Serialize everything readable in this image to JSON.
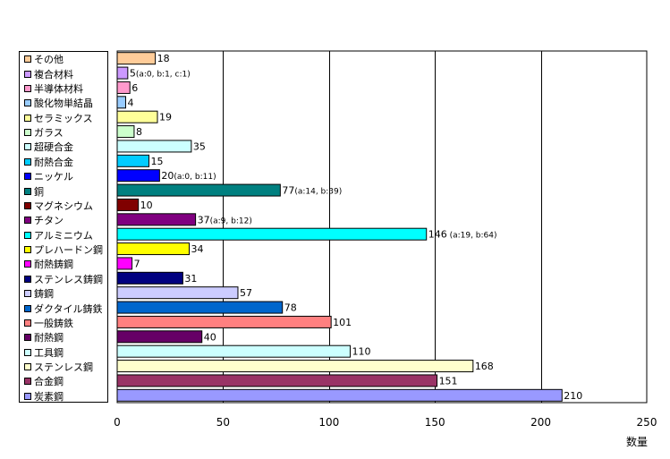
{
  "chart_data": {
    "type": "bar",
    "orientation": "horizontal",
    "xlabel": "数量",
    "xlim": [
      0,
      250
    ],
    "xticks": [
      0,
      50,
      100,
      150,
      200,
      250
    ],
    "grid": true,
    "legend_position": "left",
    "categories": [
      "その他",
      "複合材料",
      "半導体材料",
      "酸化物単結晶",
      "セラミックス",
      "ガラス",
      "超硬合金",
      "耐熱合金",
      "ニッケル",
      "銅",
      "マグネシウム",
      "チタン",
      "アルミニウム",
      "プレハードン鋼",
      "耐熱鋳鋼",
      "ステンレス鋳鋼",
      "鋳鋼",
      "ダクタイル鋳鉄",
      "一般鋳鉄",
      "耐熱鋼",
      "工具鋼",
      "ステンレス鋼",
      "合金鋼",
      "炭素鋼"
    ],
    "values": [
      18,
      5,
      6,
      4,
      19,
      8,
      35,
      15,
      20,
      77,
      10,
      37,
      146,
      34,
      7,
      31,
      57,
      78,
      101,
      40,
      110,
      168,
      151,
      210
    ],
    "value_labels": [
      "18",
      "5",
      "6",
      "4",
      "19",
      "8",
      "35",
      "15",
      "20",
      "77",
      "10",
      "37",
      "146",
      "34",
      "7",
      "31",
      "57",
      "78",
      "101",
      "40",
      "110",
      "168",
      "151",
      "210"
    ],
    "annotations": [
      "",
      "(a:0, b:1, c:1)",
      "",
      "",
      "",
      "",
      "",
      "",
      "(a:0, b:11)",
      "(a:14, b:39)",
      "",
      "(a:9, b:12)",
      " (a:19, b:64)",
      "",
      "",
      "",
      "",
      "",
      "",
      "",
      "",
      "",
      "",
      ""
    ],
    "colors": [
      "#ffcc99",
      "#cc99ff",
      "#ff99cc",
      "#99ccff",
      "#ffff99",
      "#ccffcc",
      "#ccffff",
      "#00ccff",
      "#0000ff",
      "#008080",
      "#800000",
      "#800080",
      "#00ffff",
      "#ffff00",
      "#ff00ff",
      "#000080",
      "#ccccff",
      "#0066cc",
      "#ff8080",
      "#660066",
      "#ccffff",
      "#ffffcc",
      "#993366",
      "#9999ff"
    ]
  }
}
